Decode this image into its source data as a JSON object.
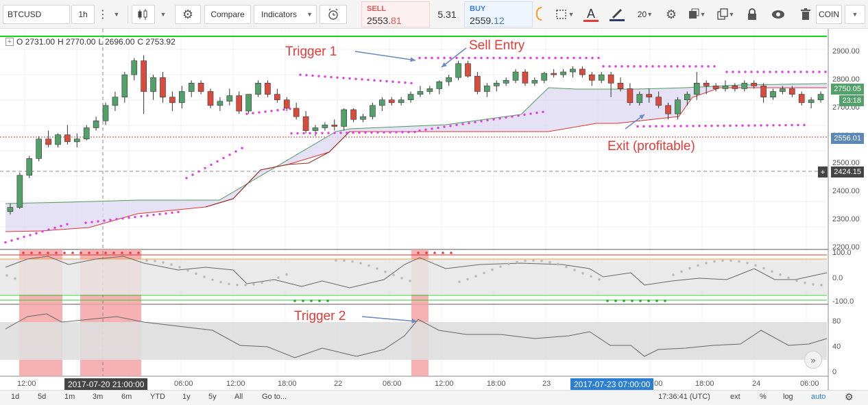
{
  "toolbar": {
    "symbol": "BTCUSD",
    "interval": "1h",
    "compare_label": "Compare",
    "indicators_label": "Indicators",
    "sell_label": "SELL",
    "sell_price_main": "2553.",
    "sell_price_tail": "81",
    "spread": "5.31",
    "buy_label": "BUY",
    "buy_price_main": "2559.",
    "buy_price_tail": "12",
    "font_size": "20",
    "coin_label": "COIN"
  },
  "legend": {
    "open": "O 2731.00",
    "high": "H 2770.00",
    "low": "L 2696.00",
    "close": "C 2753.92"
  },
  "annotations": {
    "trigger1": "Trigger 1",
    "sell_entry": "Sell Entry",
    "exit": "Exit (profitable)",
    "trigger2": "Trigger 2"
  },
  "price_axis": {
    "labels": [
      "2900.00",
      "2800.00",
      "2700.00",
      "2600.00",
      "2500.00",
      "2400.00",
      "2300.00",
      "2200.00"
    ],
    "last_price": "2750.05",
    "countdown": "23:18",
    "ref_line": "2556.01",
    "crosshair_price": "2424.15"
  },
  "osc_axis": {
    "labels": [
      "100.0",
      "0.0",
      "-100.0"
    ]
  },
  "rsi_axis": {
    "labels": [
      "80",
      "40",
      "0"
    ]
  },
  "time_axis": {
    "labels": [
      "12:00",
      "06:00",
      "12:00",
      "18:00",
      "22",
      "06:00",
      "12:00",
      "18:00",
      "23",
      "2:00",
      "18:00",
      "24",
      "06:00"
    ],
    "crosshair_time": "2017-07-20 21:00:00",
    "highlight_time": "2017-07-23 07:00:00"
  },
  "bottom_bar": {
    "ranges": [
      "1d",
      "5d",
      "1m",
      "3m",
      "6m",
      "YTD",
      "1y",
      "5y",
      "All"
    ],
    "goto": "Go to...",
    "clock": "17:36:41 (UTC)",
    "ext": "ext",
    "percent": "%",
    "log": "log",
    "auto": "auto"
  },
  "colors": {
    "up": "#53a06b",
    "down": "#d94c3d",
    "sar": "#e040e0",
    "cloud": "#dcd8f2",
    "highlight": "#f4a5a5",
    "accent": "#e53935",
    "blue": "#2b7fd3"
  },
  "chart_data": {
    "type": "candlestick",
    "y_range": [
      2170,
      2960
    ],
    "candles": [
      [
        2330,
        2360,
        2320,
        2345
      ],
      [
        2345,
        2470,
        2340,
        2460
      ],
      [
        2460,
        2530,
        2450,
        2520
      ],
      [
        2520,
        2600,
        2510,
        2590
      ],
      [
        2590,
        2620,
        2560,
        2570
      ],
      [
        2570,
        2610,
        2560,
        2605
      ],
      [
        2605,
        2640,
        2570,
        2580
      ],
      [
        2580,
        2610,
        2560,
        2590
      ],
      [
        2590,
        2640,
        2585,
        2630
      ],
      [
        2630,
        2670,
        2620,
        2655
      ],
      [
        2655,
        2720,
        2640,
        2710
      ],
      [
        2710,
        2760,
        2690,
        2740
      ],
      [
        2740,
        2830,
        2720,
        2820
      ],
      [
        2820,
        2880,
        2800,
        2870
      ],
      [
        2870,
        2890,
        2680,
        2760
      ],
      [
        2760,
        2820,
        2730,
        2810
      ],
      [
        2810,
        2830,
        2720,
        2740
      ],
      [
        2740,
        2760,
        2690,
        2720
      ],
      [
        2720,
        2780,
        2700,
        2760
      ],
      [
        2760,
        2800,
        2740,
        2790
      ],
      [
        2790,
        2800,
        2750,
        2760
      ],
      [
        2760,
        2770,
        2700,
        2710
      ],
      [
        2710,
        2740,
        2690,
        2725
      ],
      [
        2725,
        2770,
        2710,
        2745
      ],
      [
        2745,
        2760,
        2680,
        2690
      ],
      [
        2690,
        2750,
        2680,
        2750
      ],
      [
        2750,
        2800,
        2740,
        2790
      ],
      [
        2790,
        2800,
        2740,
        2750
      ],
      [
        2750,
        2770,
        2720,
        2730
      ],
      [
        2730,
        2740,
        2690,
        2700
      ],
      [
        2700,
        2720,
        2660,
        2670
      ],
      [
        2670,
        2690,
        2610,
        2620
      ],
      [
        2620,
        2640,
        2600,
        2630
      ],
      [
        2630,
        2650,
        2620,
        2640
      ],
      [
        2640,
        2660,
        2620,
        2635
      ],
      [
        2635,
        2700,
        2620,
        2695
      ],
      [
        2695,
        2700,
        2650,
        2660
      ],
      [
        2660,
        2680,
        2650,
        2670
      ],
      [
        2670,
        2720,
        2660,
        2710
      ],
      [
        2710,
        2740,
        2690,
        2730
      ],
      [
        2730,
        2740,
        2710,
        2720
      ],
      [
        2720,
        2740,
        2710,
        2730
      ],
      [
        2730,
        2760,
        2720,
        2750
      ],
      [
        2750,
        2780,
        2740,
        2760
      ],
      [
        2760,
        2780,
        2750,
        2770
      ],
      [
        2770,
        2800,
        2750,
        2795
      ],
      [
        2795,
        2820,
        2780,
        2810
      ],
      [
        2810,
        2870,
        2800,
        2860
      ],
      [
        2860,
        2870,
        2810,
        2815
      ],
      [
        2815,
        2830,
        2750,
        2760
      ],
      [
        2760,
        2790,
        2740,
        2780
      ],
      [
        2780,
        2800,
        2760,
        2790
      ],
      [
        2790,
        2810,
        2780,
        2800
      ],
      [
        2800,
        2840,
        2790,
        2830
      ],
      [
        2830,
        2840,
        2780,
        2790
      ],
      [
        2790,
        2810,
        2780,
        2800
      ],
      [
        2800,
        2830,
        2790,
        2825
      ],
      [
        2825,
        2840,
        2810,
        2820
      ],
      [
        2820,
        2840,
        2810,
        2830
      ],
      [
        2830,
        2850,
        2810,
        2840
      ],
      [
        2840,
        2850,
        2810,
        2820
      ],
      [
        2820,
        2830,
        2780,
        2800
      ],
      [
        2800,
        2830,
        2790,
        2820
      ],
      [
        2820,
        2830,
        2740,
        2790
      ],
      [
        2790,
        2810,
        2760,
        2770
      ],
      [
        2770,
        2790,
        2710,
        2720
      ],
      [
        2720,
        2760,
        2710,
        2750
      ],
      [
        2750,
        2770,
        2720,
        2740
      ],
      [
        2740,
        2760,
        2700,
        2710
      ],
      [
        2710,
        2720,
        2660,
        2680
      ],
      [
        2680,
        2740,
        2660,
        2730
      ],
      [
        2730,
        2760,
        2710,
        2750
      ],
      [
        2750,
        2830,
        2730,
        2790
      ],
      [
        2790,
        2800,
        2750,
        2780
      ],
      [
        2780,
        2790,
        2760,
        2770
      ],
      [
        2770,
        2800,
        2760,
        2780
      ],
      [
        2780,
        2790,
        2760,
        2770
      ],
      [
        2770,
        2800,
        2760,
        2790
      ],
      [
        2790,
        2800,
        2770,
        2780
      ],
      [
        2780,
        2790,
        2720,
        2740
      ],
      [
        2740,
        2770,
        2730,
        2760
      ],
      [
        2760,
        2780,
        2750,
        2770
      ],
      [
        2770,
        2780,
        2740,
        2750
      ],
      [
        2750,
        2760,
        2710,
        2720
      ],
      [
        2720,
        2740,
        2700,
        2730
      ],
      [
        2730,
        2760,
        2720,
        2750
      ]
    ]
  }
}
